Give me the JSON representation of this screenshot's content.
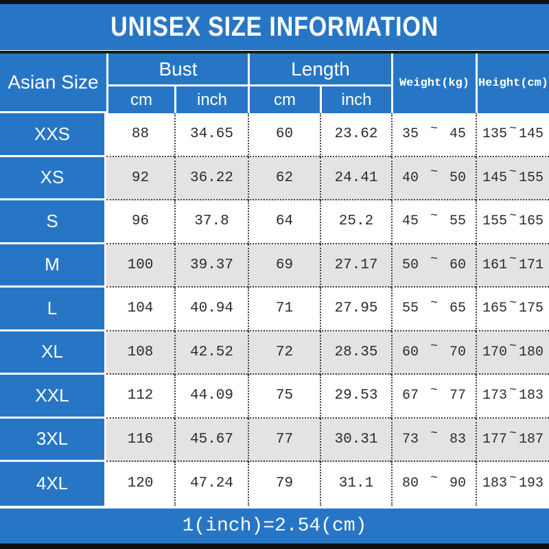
{
  "title": "UNISEX SIZE INFORMATION",
  "footer_note": "1(inch)=2.54(cm)",
  "colors": {
    "blue": "#2776C6",
    "row_white": "#ffffff",
    "row_gray": "#e4e3e1",
    "text_dark": "#2b2b2b",
    "bar_black": "#101010"
  },
  "table": {
    "size_header": "Asian Size",
    "bust_header": "Bust",
    "length_header": "Length",
    "weight_header": "Weight(kg)",
    "height_header": "Height(cm)",
    "unit_cm": "cm",
    "unit_inch": "inch",
    "tilde": "~",
    "rows": [
      {
        "size": "XXS",
        "bust_cm": "88",
        "bust_inch": "34.65",
        "length_cm": "60",
        "length_inch": "23.62",
        "weight_min": "35",
        "weight_max": "45",
        "height_min": "135",
        "height_max": "145"
      },
      {
        "size": "XS",
        "bust_cm": "92",
        "bust_inch": "36.22",
        "length_cm": "62",
        "length_inch": "24.41",
        "weight_min": "40",
        "weight_max": "50",
        "height_min": "145",
        "height_max": "155"
      },
      {
        "size": "S",
        "bust_cm": "96",
        "bust_inch": "37.8",
        "length_cm": "64",
        "length_inch": "25.2",
        "weight_min": "45",
        "weight_max": "55",
        "height_min": "155",
        "height_max": "165"
      },
      {
        "size": "M",
        "bust_cm": "100",
        "bust_inch": "39.37",
        "length_cm": "69",
        "length_inch": "27.17",
        "weight_min": "50",
        "weight_max": "60",
        "height_min": "161",
        "height_max": "171"
      },
      {
        "size": "L",
        "bust_cm": "104",
        "bust_inch": "40.94",
        "length_cm": "71",
        "length_inch": "27.95",
        "weight_min": "55",
        "weight_max": "65",
        "height_min": "165",
        "height_max": "175"
      },
      {
        "size": "XL",
        "bust_cm": "108",
        "bust_inch": "42.52",
        "length_cm": "72",
        "length_inch": "28.35",
        "weight_min": "60",
        "weight_max": "70",
        "height_min": "170",
        "height_max": "180"
      },
      {
        "size": "XXL",
        "bust_cm": "112",
        "bust_inch": "44.09",
        "length_cm": "75",
        "length_inch": "29.53",
        "weight_min": "67",
        "weight_max": "77",
        "height_min": "173",
        "height_max": "183"
      },
      {
        "size": "3XL",
        "bust_cm": "116",
        "bust_inch": "45.67",
        "length_cm": "77",
        "length_inch": "30.31",
        "weight_min": "73",
        "weight_max": "83",
        "height_min": "177",
        "height_max": "187"
      },
      {
        "size": "4XL",
        "bust_cm": "120",
        "bust_inch": "47.24",
        "length_cm": "79",
        "length_inch": "31.1",
        "weight_min": "80",
        "weight_max": "90",
        "height_min": "183",
        "height_max": "193"
      }
    ]
  },
  "chart_data": {
    "type": "table",
    "title": "UNISEX SIZE INFORMATION",
    "columns": [
      "Asian Size",
      "Bust cm",
      "Bust inch",
      "Length cm",
      "Length inch",
      "Weight(kg)",
      "Height(cm)"
    ],
    "rows": [
      [
        "XXS",
        88,
        34.65,
        60,
        23.62,
        "35~45",
        "135~145"
      ],
      [
        "XS",
        92,
        36.22,
        62,
        24.41,
        "40~50",
        "145~155"
      ],
      [
        "S",
        96,
        37.8,
        64,
        25.2,
        "45~55",
        "155~165"
      ],
      [
        "M",
        100,
        39.37,
        69,
        27.17,
        "50~60",
        "161~171"
      ],
      [
        "L",
        104,
        40.94,
        71,
        27.95,
        "55~65",
        "165~175"
      ],
      [
        "XL",
        108,
        42.52,
        72,
        28.35,
        "60~70",
        "170~180"
      ],
      [
        "XXL",
        112,
        44.09,
        75,
        29.53,
        "67~77",
        "173~183"
      ],
      [
        "3XL",
        116,
        45.67,
        77,
        30.31,
        "73~83",
        "177~187"
      ],
      [
        "4XL",
        120,
        47.24,
        79,
        31.1,
        "80~90",
        "183~193"
      ]
    ],
    "footnote": "1(inch)=2.54(cm)",
    "layout": {
      "alternating_row_shading": true,
      "header_background": "#2776C6",
      "grid": "dotted"
    }
  }
}
